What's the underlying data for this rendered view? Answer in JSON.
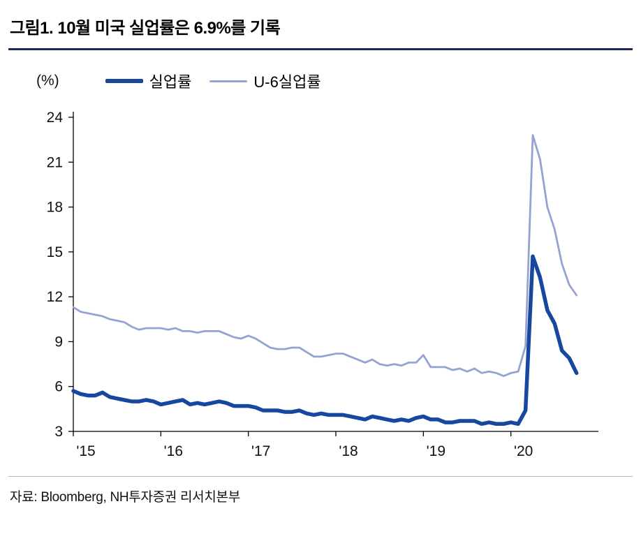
{
  "header": {
    "title": "그림1. 10월 미국 실업률은 6.9%를 기록"
  },
  "footer": {
    "source": "자료: Bloomberg, NH투자증권 리서치본부"
  },
  "chart_data": {
    "type": "line",
    "unit_label": "(%)",
    "ylim": [
      3,
      24
    ],
    "y_ticks": [
      3,
      6,
      9,
      12,
      15,
      18,
      21,
      24
    ],
    "x_tick_labels": [
      "'15",
      "'16",
      "'17",
      "'18",
      "'19",
      "'20"
    ],
    "x_tick_month_index": [
      0,
      12,
      24,
      36,
      48,
      60
    ],
    "months_domain": 72,
    "grid": false,
    "legend_position": "top",
    "series": [
      {
        "name": "실업률",
        "key": "unemployment-rate-line",
        "color": "#17479e",
        "width": 5.5,
        "values": [
          5.7,
          5.5,
          5.4,
          5.4,
          5.6,
          5.3,
          5.2,
          5.1,
          5.0,
          5.0,
          5.1,
          5.0,
          4.8,
          4.9,
          5.0,
          5.1,
          4.8,
          4.9,
          4.8,
          4.9,
          5.0,
          4.9,
          4.7,
          4.7,
          4.7,
          4.6,
          4.4,
          4.4,
          4.4,
          4.3,
          4.3,
          4.4,
          4.2,
          4.1,
          4.2,
          4.1,
          4.1,
          4.1,
          4.0,
          3.9,
          3.8,
          4.0,
          3.9,
          3.8,
          3.7,
          3.8,
          3.7,
          3.9,
          4.0,
          3.8,
          3.8,
          3.6,
          3.6,
          3.7,
          3.7,
          3.7,
          3.5,
          3.6,
          3.5,
          3.5,
          3.6,
          3.5,
          4.4,
          14.7,
          13.3,
          11.1,
          10.2,
          8.4,
          7.9,
          6.9
        ]
      },
      {
        "name": "U-6실업률",
        "key": "u6-unemployment-rate-line",
        "color": "#95a3d2",
        "width": 2.8,
        "values": [
          11.3,
          11.0,
          10.9,
          10.8,
          10.7,
          10.5,
          10.4,
          10.3,
          10.0,
          9.8,
          9.9,
          9.9,
          9.9,
          9.8,
          9.9,
          9.7,
          9.7,
          9.6,
          9.7,
          9.7,
          9.7,
          9.5,
          9.3,
          9.2,
          9.4,
          9.2,
          8.9,
          8.6,
          8.5,
          8.5,
          8.6,
          8.6,
          8.3,
          8.0,
          8.0,
          8.1,
          8.2,
          8.2,
          8.0,
          7.8,
          7.6,
          7.8,
          7.5,
          7.4,
          7.5,
          7.4,
          7.6,
          7.6,
          8.1,
          7.3,
          7.3,
          7.3,
          7.1,
          7.2,
          7.0,
          7.2,
          6.9,
          7.0,
          6.9,
          6.7,
          6.9,
          7.0,
          8.7,
          22.8,
          21.2,
          18.0,
          16.5,
          14.2,
          12.8,
          12.1
        ]
      }
    ]
  }
}
